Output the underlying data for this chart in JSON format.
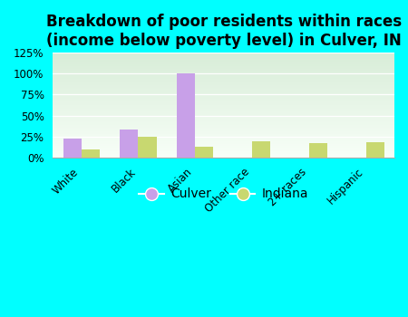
{
  "title": "Breakdown of poor residents within races\n(income below poverty level) in Culver, IN",
  "categories": [
    "White",
    "Black",
    "Asian",
    "Other race",
    "2+ races",
    "Hispanic"
  ],
  "culver_values": [
    22,
    33,
    100,
    0,
    0,
    0
  ],
  "indiana_values": [
    10,
    25,
    13,
    19,
    17,
    18
  ],
  "culver_color": "#c8a0e8",
  "indiana_color": "#c8d870",
  "background_color": "#00ffff",
  "plot_bg_top": "#d8edd8",
  "plot_bg_bottom": "#f8fff8",
  "ylim": [
    0,
    125
  ],
  "yticks": [
    0,
    25,
    50,
    75,
    100,
    125
  ],
  "ytick_labels": [
    "0%",
    "25%",
    "50%",
    "75%",
    "100%",
    "125%"
  ],
  "bar_width": 0.32,
  "title_fontsize": 12,
  "tick_fontsize": 8.5,
  "legend_fontsize": 10
}
